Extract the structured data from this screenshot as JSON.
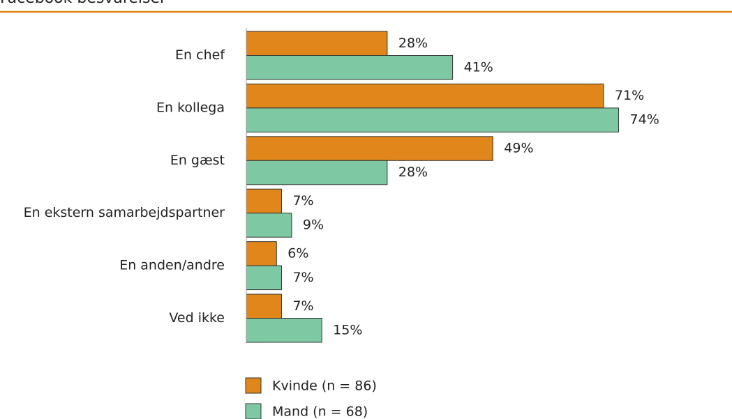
{
  "chart_data": {
    "type": "bar",
    "orientation": "horizontal",
    "title": "Facebook besvarelser",
    "categories": [
      "En chef",
      "En kollega",
      "En gæst",
      "En ekstern samarbejdspartner",
      "En anden/andre",
      "Ved ikke"
    ],
    "series": [
      {
        "name": "Kvinde (n = 86)",
        "color": "#e0861a",
        "values": [
          28,
          71,
          49,
          7,
          6,
          7
        ],
        "value_labels": [
          "28%",
          "71%",
          "49%",
          "7%",
          "6%",
          "7%"
        ]
      },
      {
        "name": "Mand (n = 68)",
        "color": "#7ec9a3",
        "values": [
          41,
          74,
          28,
          9,
          7,
          15
        ],
        "value_labels": [
          "41%",
          "74%",
          "28%",
          "9%",
          "7%",
          "15%"
        ]
      }
    ],
    "xlim": [
      0,
      100
    ],
    "legend": "bottom",
    "title_rule_color": "#e0861a"
  }
}
